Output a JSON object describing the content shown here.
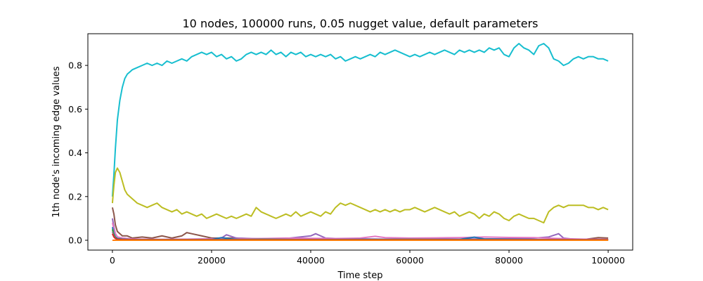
{
  "chart_data": {
    "type": "line",
    "title": "10 nodes, 100000 runs, 0.05 nugget value, default parameters",
    "xlabel": "Time step",
    "ylabel": "1th node's incoming edge values",
    "xlim": [
      -4950,
      104950
    ],
    "ylim": [
      -0.045,
      0.945
    ],
    "xticks": [
      0,
      20000,
      40000,
      60000,
      80000,
      100000
    ],
    "xtick_labels": [
      "0",
      "20000",
      "40000",
      "60000",
      "80000",
      "100000"
    ],
    "yticks": [
      0.0,
      0.2,
      0.4,
      0.6,
      0.8
    ],
    "ytick_labels": [
      "0.0",
      "0.2",
      "0.4",
      "0.6",
      "0.8"
    ],
    "grid": false,
    "series": [
      {
        "color": "#17becf",
        "x": [
          0,
          300,
          600,
          1000,
          1500,
          2000,
          2500,
          3000,
          3500,
          4000,
          5000,
          6000,
          7000,
          8000,
          9000,
          10000,
          11000,
          12000,
          13000,
          14000,
          15000,
          16000,
          17000,
          18000,
          19000,
          20000,
          21000,
          22000,
          23000,
          24000,
          25000,
          26000,
          27000,
          28000,
          29000,
          30000,
          31000,
          32000,
          33000,
          34000,
          35000,
          36000,
          37000,
          38000,
          39000,
          40000,
          41000,
          42000,
          43000,
          44000,
          45000,
          46000,
          47000,
          48000,
          49000,
          50000,
          51000,
          52000,
          53000,
          54000,
          55000,
          56000,
          57000,
          58000,
          59000,
          60000,
          61000,
          62000,
          63000,
          64000,
          65000,
          66000,
          67000,
          68000,
          69000,
          70000,
          71000,
          72000,
          73000,
          74000,
          75000,
          76000,
          77000,
          78000,
          79000,
          80000,
          81000,
          82000,
          83000,
          84000,
          85000,
          86000,
          87000,
          88000,
          89000,
          90000,
          91000,
          92000,
          93000,
          94000,
          95000,
          96000,
          97000,
          98000,
          99000,
          100000
        ],
        "y": [
          0.2,
          0.3,
          0.42,
          0.55,
          0.64,
          0.7,
          0.74,
          0.76,
          0.77,
          0.78,
          0.79,
          0.8,
          0.81,
          0.8,
          0.81,
          0.8,
          0.82,
          0.81,
          0.82,
          0.83,
          0.82,
          0.84,
          0.85,
          0.86,
          0.85,
          0.86,
          0.84,
          0.85,
          0.83,
          0.84,
          0.82,
          0.83,
          0.85,
          0.86,
          0.85,
          0.86,
          0.85,
          0.87,
          0.85,
          0.86,
          0.84,
          0.86,
          0.85,
          0.86,
          0.84,
          0.85,
          0.84,
          0.85,
          0.84,
          0.85,
          0.83,
          0.84,
          0.82,
          0.83,
          0.84,
          0.83,
          0.84,
          0.85,
          0.84,
          0.86,
          0.85,
          0.86,
          0.87,
          0.86,
          0.85,
          0.84,
          0.85,
          0.84,
          0.85,
          0.86,
          0.85,
          0.86,
          0.87,
          0.86,
          0.85,
          0.87,
          0.86,
          0.87,
          0.86,
          0.87,
          0.86,
          0.88,
          0.87,
          0.88,
          0.85,
          0.84,
          0.88,
          0.9,
          0.88,
          0.87,
          0.85,
          0.89,
          0.9,
          0.88,
          0.83,
          0.82,
          0.8,
          0.81,
          0.83,
          0.84,
          0.83,
          0.84,
          0.84,
          0.83,
          0.83,
          0.82
        ]
      },
      {
        "color": "#bcbd22",
        "x": [
          0,
          300,
          600,
          1000,
          1500,
          2000,
          2500,
          3000,
          3500,
          4000,
          5000,
          6000,
          7000,
          8000,
          9000,
          10000,
          11000,
          12000,
          13000,
          14000,
          15000,
          16000,
          17000,
          18000,
          19000,
          20000,
          21000,
          22000,
          23000,
          24000,
          25000,
          26000,
          27000,
          28000,
          29000,
          30000,
          31000,
          32000,
          33000,
          34000,
          35000,
          36000,
          37000,
          38000,
          39000,
          40000,
          41000,
          42000,
          43000,
          44000,
          45000,
          46000,
          47000,
          48000,
          49000,
          50000,
          51000,
          52000,
          53000,
          54000,
          55000,
          56000,
          57000,
          58000,
          59000,
          60000,
          61000,
          62000,
          63000,
          64000,
          65000,
          66000,
          67000,
          68000,
          69000,
          70000,
          71000,
          72000,
          73000,
          74000,
          75000,
          76000,
          77000,
          78000,
          79000,
          80000,
          81000,
          82000,
          83000,
          84000,
          85000,
          86000,
          87000,
          88000,
          89000,
          90000,
          91000,
          92000,
          93000,
          94000,
          95000,
          96000,
          97000,
          98000,
          99000,
          100000
        ],
        "y": [
          0.17,
          0.25,
          0.31,
          0.33,
          0.31,
          0.27,
          0.23,
          0.21,
          0.2,
          0.19,
          0.17,
          0.16,
          0.15,
          0.16,
          0.17,
          0.15,
          0.14,
          0.13,
          0.14,
          0.12,
          0.13,
          0.12,
          0.11,
          0.12,
          0.1,
          0.11,
          0.12,
          0.11,
          0.1,
          0.11,
          0.1,
          0.11,
          0.12,
          0.11,
          0.15,
          0.13,
          0.12,
          0.11,
          0.1,
          0.11,
          0.12,
          0.11,
          0.13,
          0.11,
          0.12,
          0.13,
          0.12,
          0.11,
          0.13,
          0.12,
          0.15,
          0.17,
          0.16,
          0.17,
          0.16,
          0.15,
          0.14,
          0.13,
          0.14,
          0.13,
          0.14,
          0.13,
          0.14,
          0.13,
          0.14,
          0.14,
          0.15,
          0.14,
          0.13,
          0.14,
          0.15,
          0.14,
          0.13,
          0.12,
          0.13,
          0.11,
          0.12,
          0.13,
          0.12,
          0.1,
          0.12,
          0.11,
          0.13,
          0.12,
          0.1,
          0.09,
          0.11,
          0.12,
          0.11,
          0.1,
          0.1,
          0.09,
          0.08,
          0.13,
          0.15,
          0.16,
          0.15,
          0.16,
          0.16,
          0.16,
          0.16,
          0.15,
          0.15,
          0.14,
          0.15,
          0.14
        ]
      },
      {
        "color": "#8c564b",
        "x": [
          0,
          300,
          600,
          1000,
          1500,
          2000,
          3000,
          4000,
          6000,
          8000,
          10000,
          12000,
          14000,
          15000,
          16000,
          18000,
          20000,
          25000,
          30000,
          35000,
          40000,
          45000,
          50000,
          55000,
          60000,
          65000,
          70000,
          75000,
          80000,
          85000,
          90000,
          95000,
          98000,
          100000
        ],
        "y": [
          0.15,
          0.12,
          0.07,
          0.04,
          0.03,
          0.02,
          0.02,
          0.01,
          0.015,
          0.01,
          0.02,
          0.01,
          0.02,
          0.035,
          0.03,
          0.02,
          0.01,
          0.01,
          0.005,
          0.004,
          0.003,
          0.004,
          0.003,
          0.003,
          0.004,
          0.003,
          0.004,
          0.003,
          0.002,
          0.002,
          0.002,
          0.003,
          0.012,
          0.01
        ]
      },
      {
        "color": "#9467bd",
        "x": [
          0,
          300,
          600,
          1000,
          2000,
          4000,
          6000,
          10000,
          15000,
          20000,
          22000,
          23000,
          25000,
          30000,
          35000,
          40000,
          41000,
          43000,
          45000,
          50000,
          55000,
          60000,
          65000,
          70000,
          75000,
          80000,
          85000,
          88000,
          90000,
          91000,
          93000,
          95000,
          100000
        ],
        "y": [
          0.1,
          0.06,
          0.03,
          0.015,
          0.01,
          0.005,
          0.004,
          0.003,
          0.005,
          0.006,
          0.01,
          0.025,
          0.01,
          0.007,
          0.008,
          0.02,
          0.03,
          0.01,
          0.008,
          0.006,
          0.005,
          0.006,
          0.007,
          0.005,
          0.006,
          0.007,
          0.01,
          0.015,
          0.03,
          0.01,
          0.005,
          0.004,
          0.003
        ]
      },
      {
        "color": "#e377c2",
        "x": [
          0,
          300,
          600,
          1000,
          2000,
          4000,
          6000,
          10000,
          15000,
          20000,
          25000,
          30000,
          35000,
          40000,
          45000,
          50000,
          53000,
          55000,
          60000,
          65000,
          70000,
          75000,
          80000,
          85000,
          90000,
          95000,
          100000
        ],
        "y": [
          0.08,
          0.05,
          0.03,
          0.015,
          0.01,
          0.006,
          0.005,
          0.004,
          0.005,
          0.006,
          0.007,
          0.008,
          0.01,
          0.009,
          0.008,
          0.01,
          0.018,
          0.012,
          0.01,
          0.011,
          0.012,
          0.015,
          0.013,
          0.012,
          0.008,
          0.005,
          0.004
        ]
      },
      {
        "color": "#1f77b4",
        "x": [
          0,
          300,
          600,
          1000,
          2000,
          4000,
          10000,
          20000,
          22000,
          24000,
          26000,
          30000,
          40000,
          50000,
          60000,
          70000,
          73000,
          75000,
          80000,
          90000,
          100000
        ],
        "y": [
          0.06,
          0.03,
          0.015,
          0.008,
          0.005,
          0.003,
          0.002,
          0.003,
          0.012,
          0.006,
          0.003,
          0.004,
          0.003,
          0.004,
          0.003,
          0.004,
          0.014,
          0.006,
          0.004,
          0.003,
          0.002
        ]
      },
      {
        "color": "#2ca02c",
        "x": [
          0,
          300,
          600,
          1000,
          2000,
          5000,
          10000,
          20000,
          30000,
          40000,
          50000,
          60000,
          70000,
          80000,
          90000,
          100000
        ],
        "y": [
          0.05,
          0.025,
          0.012,
          0.006,
          0.004,
          0.003,
          0.003,
          0.003,
          0.004,
          0.003,
          0.003,
          0.004,
          0.003,
          0.003,
          0.003,
          0.002
        ]
      },
      {
        "color": "#7f7f7f",
        "x": [
          0,
          300,
          600,
          1000,
          2000,
          5000,
          10000,
          20000,
          30000,
          40000,
          50000,
          60000,
          70000,
          80000,
          90000,
          100000
        ],
        "y": [
          0.04,
          0.02,
          0.01,
          0.005,
          0.003,
          0.002,
          0.002,
          0.002,
          0.002,
          0.002,
          0.002,
          0.002,
          0.002,
          0.002,
          0.002,
          0.002
        ]
      },
      {
        "color": "#d62728",
        "x": [
          0,
          300,
          600,
          1000,
          2000,
          5000,
          10000,
          20000,
          30000,
          40000,
          50000,
          60000,
          70000,
          80000,
          90000,
          100000
        ],
        "y": [
          0.03,
          0.015,
          0.008,
          0.004,
          0.003,
          0.002,
          0.002,
          0.002,
          0.002,
          0.002,
          0.002,
          0.002,
          0.002,
          0.002,
          0.002,
          0.002
        ]
      },
      {
        "color": "#ff7f0e",
        "x": [
          0,
          100000
        ],
        "y": [
          0.0,
          0.0
        ]
      }
    ]
  }
}
